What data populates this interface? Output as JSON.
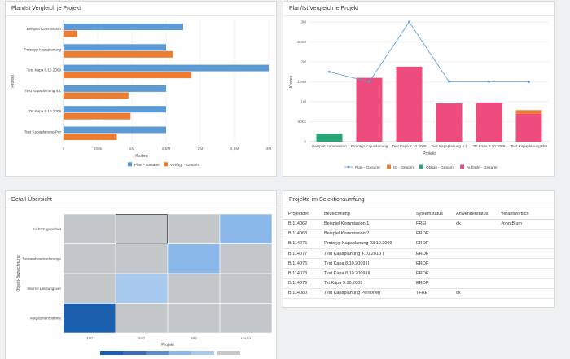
{
  "card1": {
    "title": "Plan/Ist Vergleich je Projekt"
  },
  "card2": {
    "title": "Plan/Ist Vergleich je Projekt"
  },
  "card3": {
    "title": "Detail-Übersicht"
  },
  "card4": {
    "title": "Projekte im Selektionsumfang"
  },
  "colors": {
    "plan": "#5b9bd5",
    "verfuegt": "#ed7d31",
    "ist": "#ed4c7c",
    "obligo": "#27a776",
    "line": "#5b9bd5"
  },
  "chart_data": [
    {
      "type": "bar",
      "orientation": "horizontal",
      "title": "Plan/Ist Vergleich je Projekt",
      "xlabel": "Kosten",
      "ylabel": "Projekt",
      "xlim": [
        0,
        3000000
      ],
      "xticks": [
        "0",
        "500k",
        "1M",
        "1,5M",
        "2M",
        "2,5M",
        "3M"
      ],
      "categories": [
        "Beispiel Kommission",
        "Prototyp Kapaplanung",
        "Test Kapa 8.10.2009",
        "Test Kapaplanung 4.1",
        "Tst Kapa 9.10.2009",
        "Test Kapaplanung Per"
      ],
      "series": [
        {
          "name": "Plan - Gesamt",
          "values": [
            1750000,
            1500000,
            3000000,
            1500000,
            1500000,
            1500000
          ]
        },
        {
          "name": "Verfügt - Gesamt",
          "values": [
            200000,
            1600000,
            1870000,
            950000,
            980000,
            780000
          ]
        }
      ],
      "legend": "bottom",
      "grid": true
    },
    {
      "type": "bar",
      "title": "Plan/Ist Vergleich je Projekt",
      "xlabel": "Projekt",
      "ylabel": "Kosten",
      "ylim": [
        0,
        3000000
      ],
      "yticks": [
        "0",
        "500k",
        "1M",
        "1,5M",
        "2M",
        "2,5M",
        "3M"
      ],
      "categories": [
        "Beispiel Kommission",
        "Prototyp Kapaplanung",
        "Test Kapa 8.10.2009",
        "Test Kapaplanung 4.1",
        "Tst Kapa 9.10.2009",
        "Test Kapaplanung Per"
      ],
      "series": [
        {
          "name": "Plan - Gesamt",
          "kind": "line",
          "values": [
            1750000,
            1500000,
            3000000,
            1500000,
            1500000,
            1500000
          ]
        },
        {
          "name": "Ist - Gesamt",
          "kind": "stack",
          "values": [
            0,
            0,
            0,
            0,
            0,
            90000
          ]
        },
        {
          "name": "Obligo - Gesamt",
          "kind": "stack",
          "values": [
            200000,
            0,
            0,
            0,
            0,
            0
          ]
        },
        {
          "name": "Auftrpln - Gesamt",
          "kind": "stack",
          "values": [
            0,
            1600000,
            1880000,
            960000,
            980000,
            700000
          ]
        }
      ],
      "legend": "bottom",
      "grid": true
    },
    {
      "type": "heatmap",
      "title": "Detail-Übersicht",
      "xlabel": "Projekt",
      "ylabel": "Objekt-Bezeichnung",
      "x": [
        "400",
        "840",
        "862",
        "<null>"
      ],
      "y": [
        "nicht zugeordnet",
        "Bestandsveränderunge",
        "Interne Leistungsver",
        "Magazinentnahme"
      ],
      "cells": [
        [
          null,
          null,
          null,
          2
        ],
        [
          null,
          null,
          2,
          null
        ],
        [
          null,
          1,
          null,
          null
        ],
        [
          5,
          null,
          null,
          null
        ]
      ],
      "legend": "bottom"
    }
  ],
  "table": {
    "columns": [
      "Projektdef.",
      "Bezeichnung",
      "Systemstatus",
      "Anwenderstatus",
      "Verantwortlich"
    ],
    "rows": [
      [
        "B.114062",
        "Beispiel Kommission 1",
        "FREI",
        "ok",
        "John Blum"
      ],
      [
        "B.114063",
        "Beispiel Kommission 2",
        "EROF",
        "",
        ""
      ],
      [
        "B.114075",
        "Prototyp Kapaplanung 03.10.2009",
        "EROF",
        "",
        ""
      ],
      [
        "B.114077",
        "Test Kapaplanung 4.10.2010 I",
        "EROF",
        "",
        ""
      ],
      [
        "B.114076",
        "Test Kapa 8.10.2009 II",
        "EROF",
        "",
        ""
      ],
      [
        "B.114078",
        "Test Kapa 8.10.2009 III",
        "EROF",
        "",
        ""
      ],
      [
        "B.114079",
        "Tst Kapa 9.10.2009",
        "EROF",
        "",
        ""
      ],
      [
        "B.114080",
        "Test Kapaplanung Personen",
        "TFRE",
        "ok",
        ""
      ]
    ]
  }
}
